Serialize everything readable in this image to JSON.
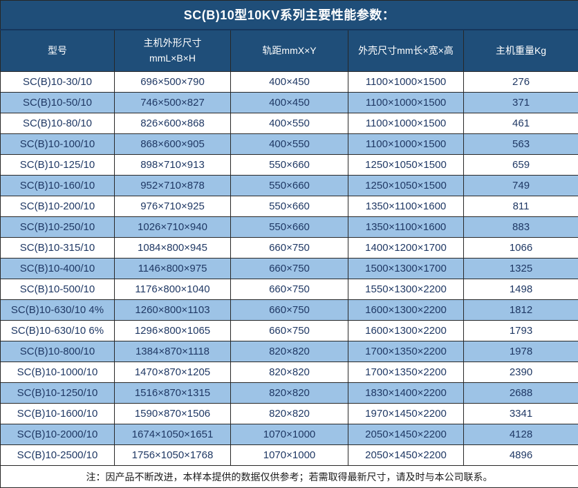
{
  "title": "SC(B)10型10KV系列主要性能参数：",
  "table": {
    "columns": [
      {
        "label": "型号"
      },
      {
        "label": "主机外形尺寸",
        "label2": "mmL×B×H"
      },
      {
        "label": "轨距mmX×Y"
      },
      {
        "label": "外壳尺寸mm长×宽×高"
      },
      {
        "label": "主机重量Kg"
      }
    ],
    "rows": [
      [
        "SC(B)10-30/10",
        "696×500×790",
        "400×450",
        "1100×1000×1500",
        "276"
      ],
      [
        "SC(B)10-50/10",
        "746×500×827",
        "400×450",
        "1100×1000×1500",
        "371"
      ],
      [
        "SC(B)10-80/10",
        "826×600×868",
        "400×550",
        "1100×1000×1500",
        "461"
      ],
      [
        "SC(B)10-100/10",
        "868×600×905",
        "400×550",
        "1100×1000×1500",
        "563"
      ],
      [
        "SC(B)10-125/10",
        "898×710×913",
        "550×660",
        "1250×1050×1500",
        "659"
      ],
      [
        "SC(B)10-160/10",
        "952×710×878",
        "550×660",
        "1250×1050×1500",
        "749"
      ],
      [
        "SC(B)10-200/10",
        "976×710×925",
        "550×660",
        "1350×1100×1600",
        "811"
      ],
      [
        "SC(B)10-250/10",
        "1026×710×940",
        "550×660",
        "1350×1100×1600",
        "883"
      ],
      [
        "SC(B)10-315/10",
        "1084×800×945",
        "660×750",
        "1400×1200×1700",
        "1066"
      ],
      [
        "SC(B)10-400/10",
        "1146×800×975",
        "660×750",
        "1500×1300×1700",
        "1325"
      ],
      [
        "SC(B)10-500/10",
        "1176×800×1040",
        "660×750",
        "1550×1300×2200",
        "1498"
      ],
      [
        "SC(B)10-630/10 4%",
        "1260×800×1103",
        "660×750",
        "1600×1300×2200",
        "1812"
      ],
      [
        "SC(B)10-630/10 6%",
        "1296×800×1065",
        "660×750",
        "1600×1300×2200",
        "1793"
      ],
      [
        "SC(B)10-800/10",
        "1384×870×1118",
        "820×820",
        "1700×1350×2200",
        "1978"
      ],
      [
        "SC(B)10-1000/10",
        "1470×870×1205",
        "820×820",
        "1700×1350×2200",
        "2390"
      ],
      [
        "SC(B)10-1250/10",
        "1516×870×1315",
        "820×820",
        "1830×1400×2200",
        "2688"
      ],
      [
        "SC(B)10-1600/10",
        "1590×870×1506",
        "820×820",
        "1970×1450×2200",
        "3341"
      ],
      [
        "SC(B)10-2000/10",
        "1674×1050×1651",
        "1070×1000",
        "2050×1450×2200",
        "4128"
      ],
      [
        "SC(B)10-2500/10",
        "1756×1050×1768",
        "1070×1000",
        "2050×1450×2200",
        "4896"
      ]
    ]
  },
  "footer_note": "注：因产品不断改进，本样本提供的数据仅供参考；若需取得最新尺寸，请及时与本公司联系。",
  "colors": {
    "header_bg": "#1F4E79",
    "alt_row_bg": "#9DC3E6",
    "data_text": "#1F3864",
    "border": "#262626"
  }
}
